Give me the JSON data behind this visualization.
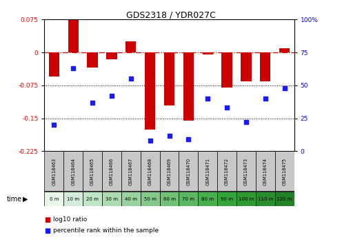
{
  "title": "GDS2318 / YDR027C",
  "samples": [
    "GSM118463",
    "GSM118464",
    "GSM118465",
    "GSM118466",
    "GSM118467",
    "GSM118468",
    "GSM118469",
    "GSM118470",
    "GSM118471",
    "GSM118472",
    "GSM118473",
    "GSM118474",
    "GSM118475"
  ],
  "time_labels": [
    "0 m",
    "10 m",
    "20 m",
    "30 m",
    "40 m",
    "50 m",
    "60 m",
    "70 m",
    "80 m",
    "90 m",
    "100 m",
    "110 m",
    "120 m"
  ],
  "log10_ratio": [
    -0.055,
    0.075,
    -0.035,
    -0.015,
    0.025,
    -0.175,
    -0.12,
    -0.155,
    -0.005,
    -0.08,
    -0.065,
    -0.065,
    0.01
  ],
  "percentile_rank": [
    20,
    63,
    37,
    42,
    55,
    8,
    12,
    9,
    40,
    33,
    22,
    40,
    48
  ],
  "ylim_left": [
    -0.225,
    0.075
  ],
  "ylim_right": [
    0,
    100
  ],
  "left_ticks": [
    0.075,
    0,
    -0.075,
    -0.15,
    -0.225
  ],
  "right_ticks": [
    100,
    75,
    50,
    25,
    0
  ],
  "bar_color": "#cc0000",
  "scatter_color": "#1a1aff",
  "background_color": "#ffffff",
  "cell_bg_gray": "#c8c8c8",
  "time_row_bg_colors": [
    "#e8f5e9",
    "#d4edda",
    "#c0e4c6",
    "#acdbb2",
    "#98d29e",
    "#84c98a",
    "#70c076",
    "#5cb762",
    "#48ae4e",
    "#34a53a",
    "#2e9933",
    "#288d2d",
    "#228127"
  ],
  "legend_ratio_color": "#cc0000",
  "legend_pct_color": "#1a1aff"
}
